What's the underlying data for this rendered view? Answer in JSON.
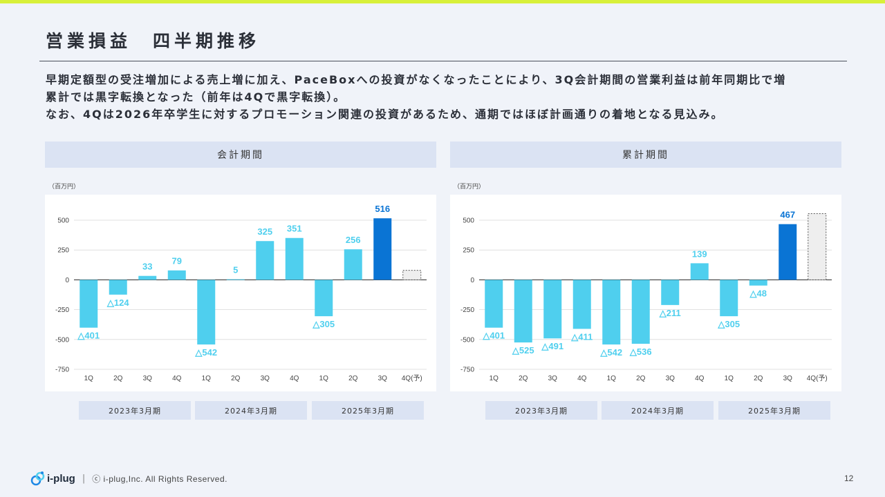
{
  "header": {
    "title": "営業損益　四半期推移"
  },
  "description": [
    "早期定額型の受注増加による売上増に加え、PaceBoxへの投資がなくなったことにより、3Q会計期間の営業利益は前年同期比で増",
    "累計では黒字転換となった（前年は4Qで黒字転換）。",
    "なお、4Qは2026年卒学生に対するプロモーション関連の投資があるため、通期ではほぼ計画通りの着地となる見込み。"
  ],
  "colors": {
    "bar": "#4fcfee",
    "highlight": "#0a74d4",
    "forecast_fill": "#eeeeee",
    "forecast_border": "#555555"
  },
  "panels": [
    {
      "title": "会計期間",
      "unit": "（百万円）"
    },
    {
      "title": "累計期間",
      "unit": "（百万円）"
    }
  ],
  "periods": [
    "2023年3月期",
    "2024年3月期",
    "2025年3月期"
  ],
  "chart_data": [
    {
      "type": "bar",
      "title": "会計期間",
      "ylabel": "（百万円）",
      "categories": [
        "1Q",
        "2Q",
        "3Q",
        "4Q",
        "1Q",
        "2Q",
        "3Q",
        "4Q",
        "1Q",
        "2Q",
        "3Q",
        "4Q(予)"
      ],
      "groups": [
        "2023年3月期",
        "2024年3月期",
        "2025年3月期"
      ],
      "values": [
        -401,
        -124,
        33,
        79,
        -542,
        5,
        325,
        351,
        -305,
        256,
        516,
        80
      ],
      "labels": [
        "△401",
        "△124",
        "33",
        "79",
        "△542",
        "5",
        "325",
        "351",
        "△305",
        "256",
        "516",
        ""
      ],
      "highlight_index": 10,
      "forecast_index": 11,
      "ylim": [
        -750,
        500
      ],
      "yticks": [
        500,
        250,
        0,
        -250,
        -500,
        -750
      ],
      "grid": true
    },
    {
      "type": "bar",
      "title": "累計期間",
      "ylabel": "（百万円）",
      "categories": [
        "1Q",
        "2Q",
        "3Q",
        "4Q",
        "1Q",
        "2Q",
        "3Q",
        "4Q",
        "1Q",
        "2Q",
        "3Q",
        "4Q(予)"
      ],
      "groups": [
        "2023年3月期",
        "2024年3月期",
        "2025年3月期"
      ],
      "values": [
        -401,
        -525,
        -491,
        -411,
        -542,
        -536,
        -211,
        139,
        -305,
        -48,
        467,
        555
      ],
      "labels": [
        "△401",
        "△525",
        "△491",
        "△411",
        "△542",
        "△536",
        "△211",
        "139",
        "△305",
        "△48",
        "467",
        ""
      ],
      "highlight_index": 10,
      "forecast_index": 11,
      "ylim": [
        -750,
        500
      ],
      "yticks": [
        500,
        250,
        0,
        -250,
        -500,
        -750
      ],
      "grid": true
    }
  ],
  "footer": {
    "logo_text": "i-plug",
    "separator": "|",
    "copyright": "ⓒ i-plug,Inc. All Rights Reserved.",
    "page_number": "12"
  }
}
